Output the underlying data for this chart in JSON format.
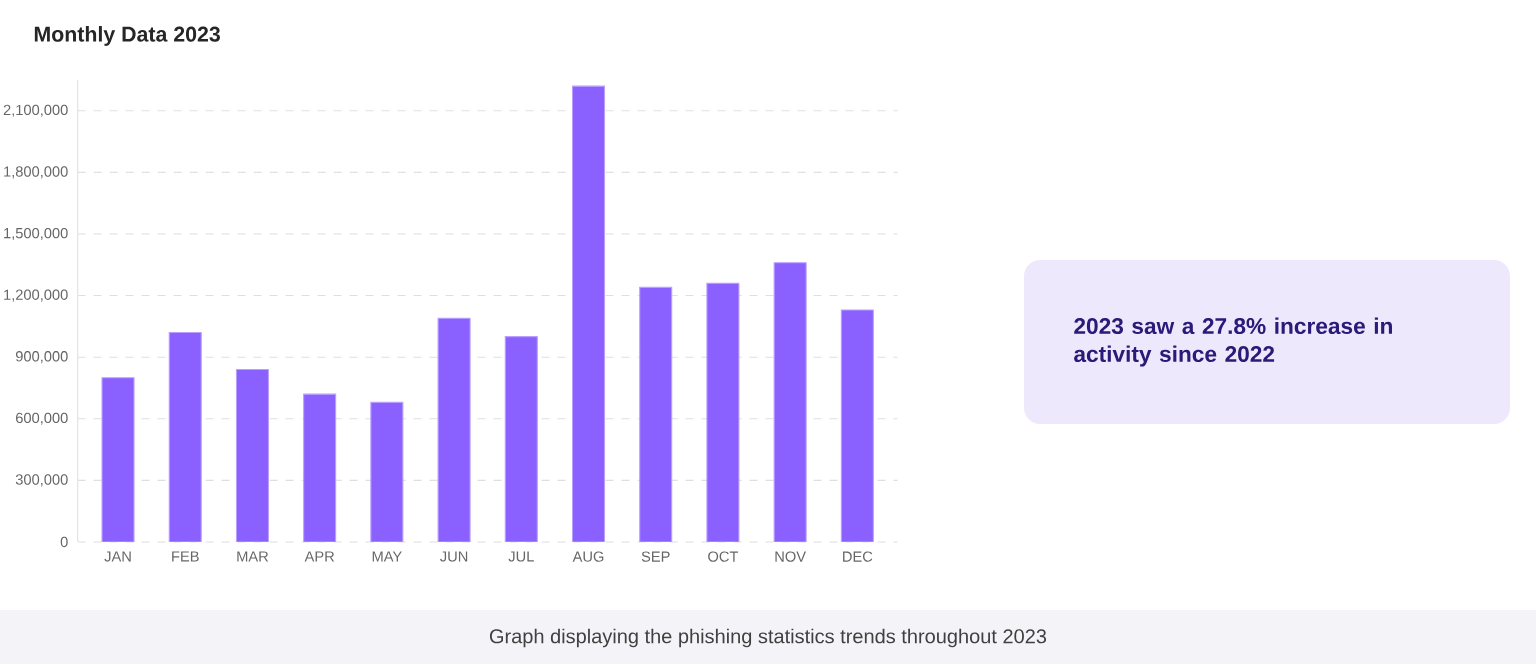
{
  "chart_data": {
    "type": "bar",
    "title": "Monthly Data 2023",
    "categories": [
      "JAN",
      "FEB",
      "MAR",
      "APR",
      "MAY",
      "JUN",
      "JUL",
      "AUG",
      "SEP",
      "OCT",
      "NOV",
      "DEC"
    ],
    "values": [
      800000,
      1020000,
      840000,
      720000,
      680000,
      1090000,
      1000000,
      2220000,
      1240000,
      1260000,
      1360000,
      1130000
    ],
    "color": "#8a60ff",
    "yticks": [
      {
        "value": 0,
        "label": "0"
      },
      {
        "value": 300000,
        "label": "300,000"
      },
      {
        "value": 600000,
        "label": "600,000"
      },
      {
        "value": 900000,
        "label": "900,000"
      },
      {
        "value": 1200000,
        "label": "1,200,000"
      },
      {
        "value": 1500000,
        "label": "1,500,000"
      },
      {
        "value": 1800000,
        "label": "1,800,000"
      },
      {
        "value": 2100000,
        "label": "2,100,000"
      }
    ],
    "ylim": [
      0,
      2250000
    ],
    "grid": "y",
    "annotations": [
      "2023 saw a 27.8% increase in activity since 2022",
      "Graph displaying the phishing statistics trends throughout 2023"
    ]
  }
}
